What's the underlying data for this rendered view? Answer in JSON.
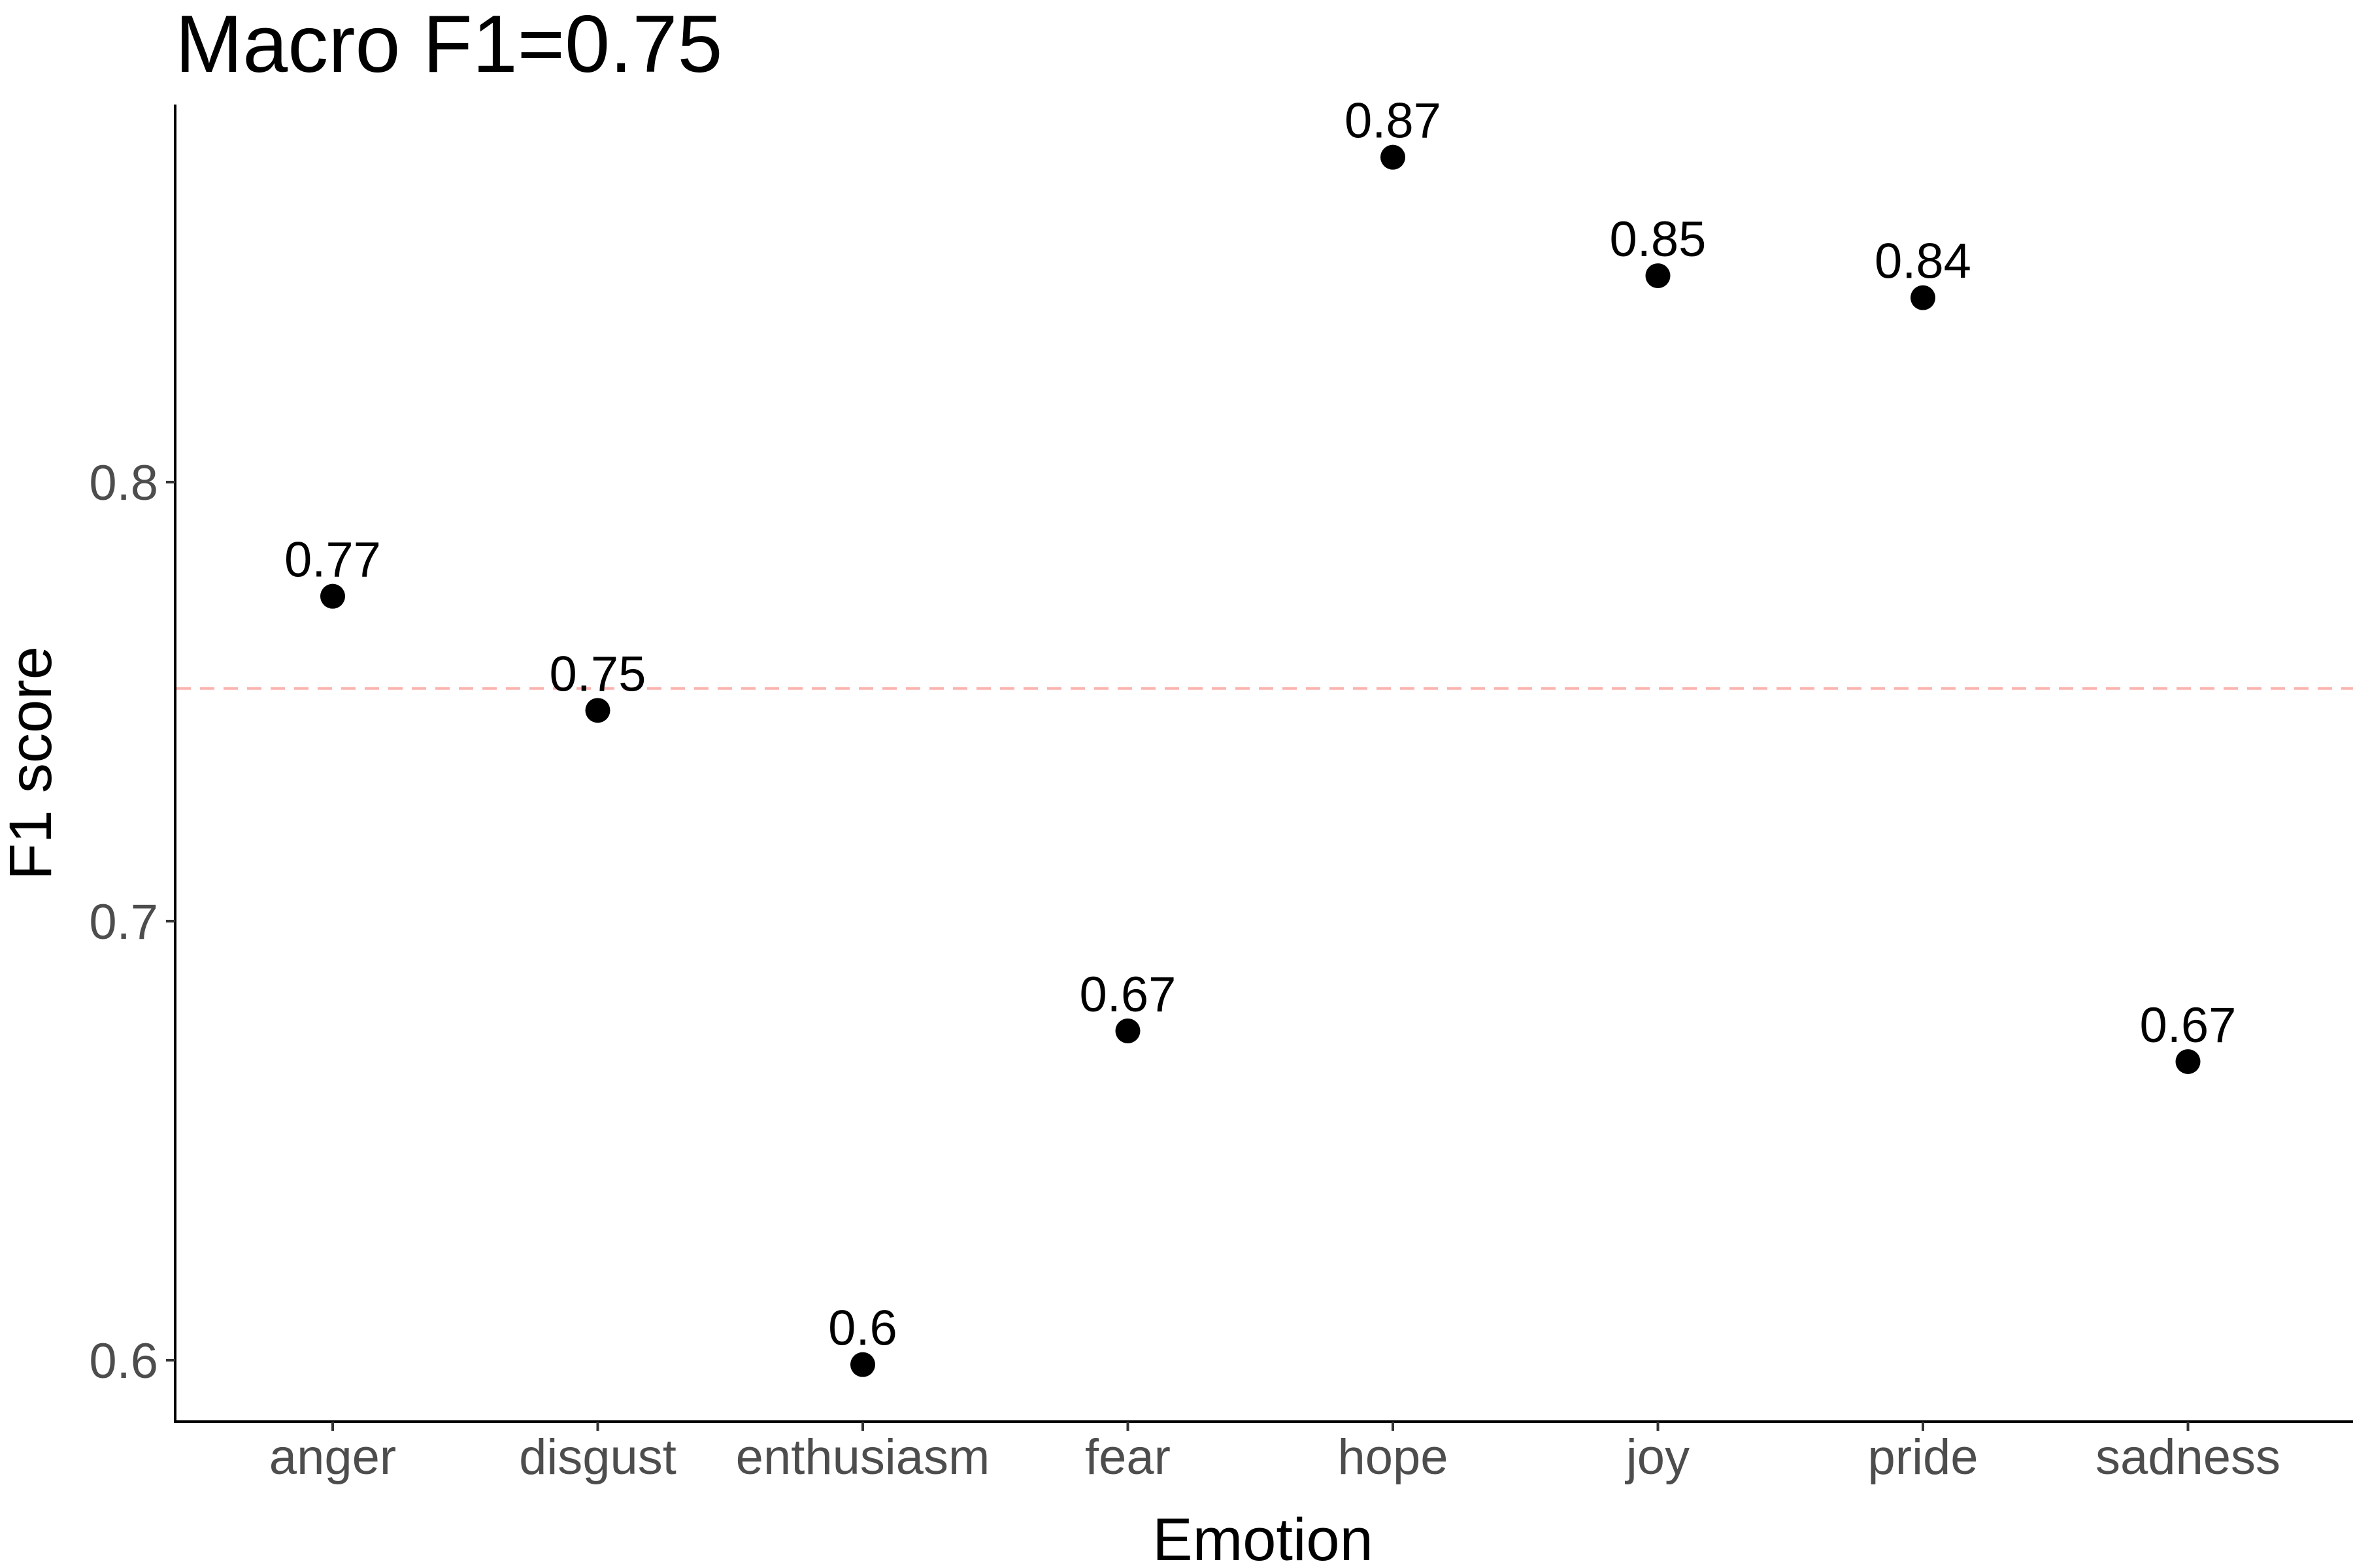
{
  "chart_data": {
    "type": "scatter",
    "title": "Macro F1=0.75",
    "xlabel": "Emotion",
    "ylabel": "F1 score",
    "categories": [
      "anger",
      "disgust",
      "enthusiasm",
      "fear",
      "hope",
      "joy",
      "pride",
      "sadness"
    ],
    "values": [
      0.774,
      0.748,
      0.599,
      0.675,
      0.874,
      0.847,
      0.842,
      0.668
    ],
    "data_labels": [
      "0.77",
      "0.75",
      "0.6",
      "0.67",
      "0.87",
      "0.85",
      "0.84",
      "0.67"
    ],
    "reference_line": {
      "y": 0.753,
      "style": "dashed",
      "color": "#f8766d"
    },
    "ylim": [
      0.586,
      0.886
    ],
    "yticks": [
      0.6,
      0.7,
      0.8
    ],
    "ytick_labels": [
      "0.6",
      "0.7",
      "0.8"
    ],
    "grid": false,
    "point_color": "#000000"
  }
}
